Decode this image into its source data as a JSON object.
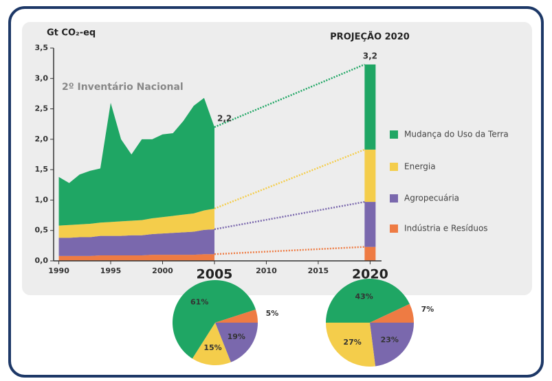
{
  "chart_data": [
    {
      "type": "area",
      "y_label": "Gt CO₂-eq",
      "title": "PROJEÇÃO 2020",
      "subtitle": "2º Inventário Nacional",
      "annotations": [
        "2,2",
        "3,2"
      ],
      "x": [
        1990,
        1991,
        1992,
        1993,
        1994,
        1995,
        1996,
        1997,
        1998,
        1999,
        2000,
        2001,
        2002,
        2003,
        2004,
        2005
      ],
      "projection_x": 2020,
      "series": [
        {
          "name": "Indústria e Resíduos",
          "color": "#ee7b43",
          "values": [
            0.08,
            0.08,
            0.08,
            0.08,
            0.09,
            0.09,
            0.09,
            0.09,
            0.09,
            0.1,
            0.1,
            0.1,
            0.1,
            0.1,
            0.11,
            0.11
          ],
          "projection": 0.23
        },
        {
          "name": "Agropecuária",
          "color": "#7a68ad",
          "values": [
            0.3,
            0.3,
            0.31,
            0.31,
            0.32,
            0.32,
            0.32,
            0.33,
            0.33,
            0.34,
            0.35,
            0.36,
            0.37,
            0.38,
            0.4,
            0.41
          ],
          "projection": 0.74
        },
        {
          "name": "Energia",
          "color": "#f4cd4b",
          "values": [
            0.2,
            0.21,
            0.21,
            0.22,
            0.22,
            0.23,
            0.24,
            0.24,
            0.25,
            0.26,
            0.27,
            0.28,
            0.29,
            0.3,
            0.32,
            0.34
          ],
          "projection": 0.86
        },
        {
          "name": "Mudança do Uso da Terra",
          "color": "#1fa664",
          "values": [
            0.8,
            0.69,
            0.82,
            0.87,
            0.89,
            1.96,
            1.35,
            1.09,
            1.33,
            1.3,
            1.36,
            1.36,
            1.54,
            1.77,
            1.85,
            1.34
          ],
          "projection": 1.4
        }
      ],
      "xlim": [
        1989.5,
        2021.1
      ],
      "xticks": [
        1990,
        1995,
        2000,
        2005,
        2010,
        2015,
        2020
      ],
      "ylim": [
        0,
        3.5
      ],
      "yticks": [
        {
          "value": 0,
          "label": "0,0"
        },
        {
          "value": 0.5,
          "label": "0,5"
        },
        {
          "value": 1,
          "label": "1,0"
        },
        {
          "value": 1.5,
          "label": "1,5"
        },
        {
          "value": 2,
          "label": "2,0"
        },
        {
          "value": 2.5,
          "label": "2,5"
        },
        {
          "value": 3,
          "label": "3,0"
        },
        {
          "value": 3.5,
          "label": "3,5"
        }
      ]
    },
    {
      "type": "pie",
      "values": [
        5,
        19,
        15,
        61
      ],
      "value_labels": [
        "5%",
        "19%",
        "15%",
        "61%"
      ]
    },
    {
      "type": "pie",
      "values": [
        7,
        23,
        27,
        43
      ],
      "value_labels": [
        "7%",
        "23%",
        "27%",
        "43%"
      ]
    }
  ]
}
